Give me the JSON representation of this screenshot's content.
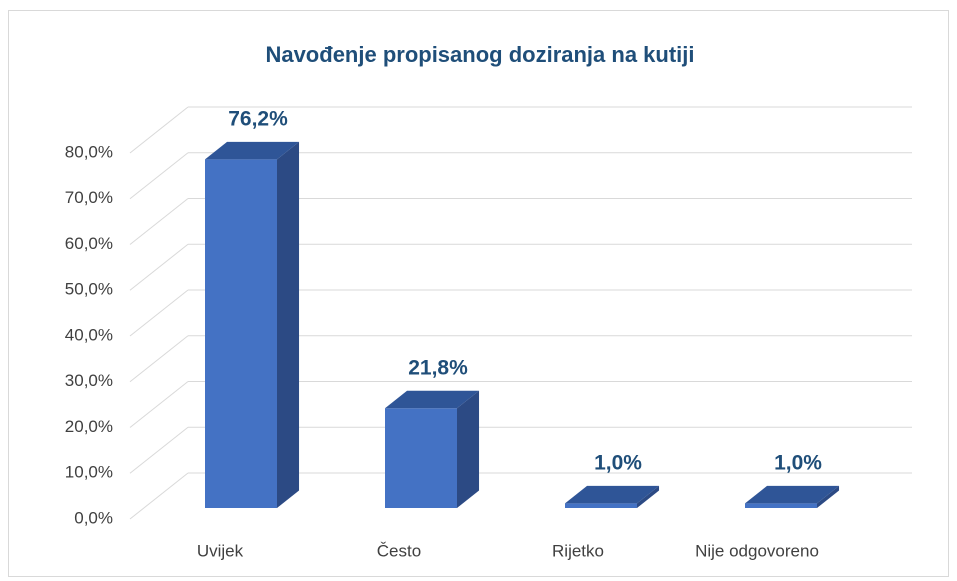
{
  "chart_data": {
    "type": "bar3d",
    "title": "Navođenje propisanog doziranja na kutiji",
    "categories": [
      "Uvijek",
      "Često",
      "Rijetko",
      "Nije odgovoreno"
    ],
    "values": [
      76.2,
      21.8,
      1.0,
      1.0
    ],
    "value_labels": [
      "76,2%",
      "21,8%",
      "1,0%",
      "1,0%"
    ],
    "color": "#4472c4",
    "ylim": [
      0,
      80
    ],
    "yticks": [
      {
        "value": 0,
        "label": "0,0%"
      },
      {
        "value": 10,
        "label": "10,0%"
      },
      {
        "value": 20,
        "label": "20,0%"
      },
      {
        "value": 30,
        "label": "30,0%"
      },
      {
        "value": 40,
        "label": "40,0%"
      },
      {
        "value": 50,
        "label": "50,0%"
      },
      {
        "value": 60,
        "label": "60,0%"
      },
      {
        "value": 70,
        "label": "70,0%"
      },
      {
        "value": 80,
        "label": "80,0%"
      }
    ],
    "grid": true
  }
}
